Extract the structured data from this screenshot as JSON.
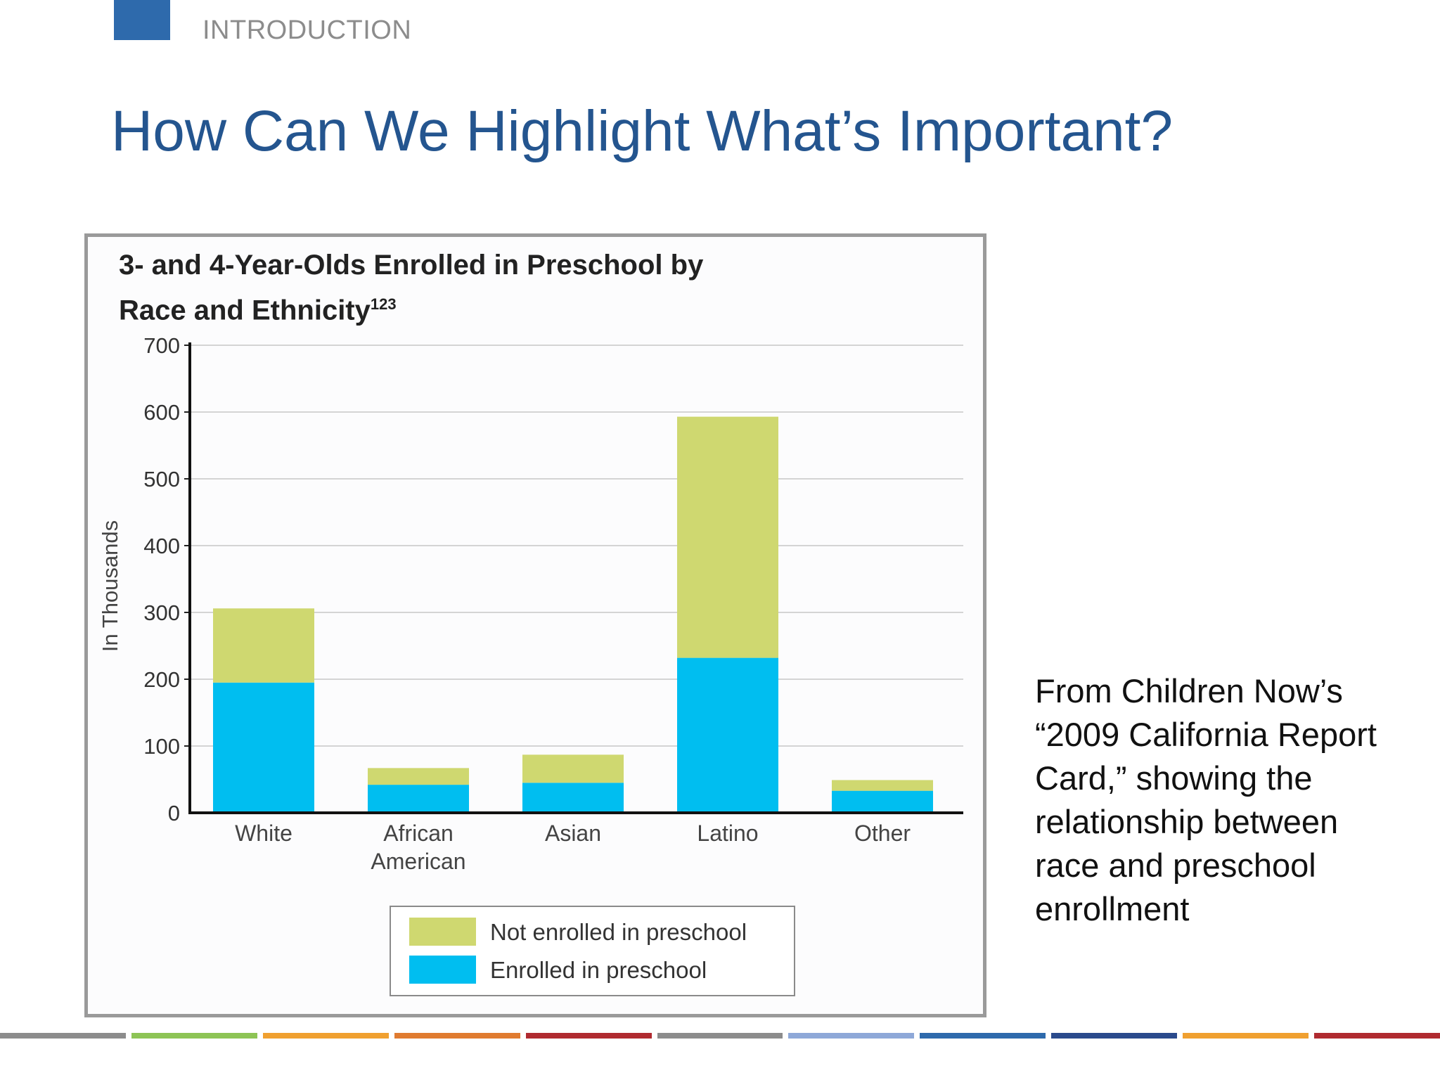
{
  "slide": {
    "section_label": "INTRODUCTION",
    "title": "How Can We Highlight What’s Important?",
    "source_note": "From Children Now’s “2009 California Report Card,” showing the relationship between race and preschool enrollment",
    "accent_color": "#2e6aac",
    "footer_colors": [
      "#8c8c8c",
      "#8dc455",
      "#f0a030",
      "#e07b30",
      "#b02a30",
      "#8c8c8c",
      "#8ea8d8",
      "#2e6aac",
      "#2a4a8c",
      "#f0a030",
      "#b02a30"
    ]
  },
  "chart_data": {
    "type": "bar",
    "stacked": true,
    "title": "3- and 4-Year-Olds Enrolled in Preschool by Race and Ethnicity",
    "title_superscript": "123",
    "ylabel": "In Thousands",
    "ylim": [
      0,
      700
    ],
    "yticks": [
      0,
      100,
      200,
      300,
      400,
      500,
      600,
      700
    ],
    "grid": true,
    "categories": [
      "White",
      "African American",
      "Asian",
      "Latino",
      "Other"
    ],
    "category_label_lines": [
      [
        "White"
      ],
      [
        "African",
        "American"
      ],
      [
        "Asian"
      ],
      [
        "Latino"
      ],
      [
        "Other"
      ]
    ],
    "series": [
      {
        "name": "Enrolled in preschool",
        "color": "#00bef0",
        "values": [
          195,
          42,
          45,
          232,
          33
        ]
      },
      {
        "name": "Not enrolled in preschool",
        "color": "#cfd870",
        "values": [
          111,
          25,
          42,
          361,
          16
        ]
      }
    ],
    "legend": {
      "placement": "bottom-center",
      "order": [
        "Not enrolled in preschool",
        "Enrolled in preschool"
      ]
    }
  }
}
